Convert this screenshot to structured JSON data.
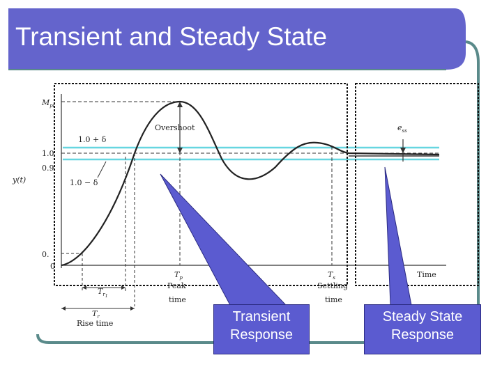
{
  "slide": {
    "title": "Transient and Steady State",
    "colors": {
      "title_bar": "#6464cc",
      "frame_line": "#5a8a8a",
      "callout": "#5b5bd0",
      "tolerance_band": "#66d6e0"
    }
  },
  "figure": {
    "y_axis_label": "y(t)",
    "y_ticks": {
      "peak": "M",
      "peak_sub": "pt",
      "upper": "1.0",
      "lower": "0.9",
      "small": "0.",
      "zero": "0"
    },
    "band_upper_label": "1.0 + δ",
    "band_lower_label": "1.0 − δ",
    "overshoot_label": "Overshoot",
    "ess_label": "e",
    "ess_sub": "ss",
    "x_axis_label": "Time",
    "peak_time_symbol": "T",
    "peak_time_sub": "p",
    "peak_time_caption": [
      "Peak",
      "time"
    ],
    "settling_time_symbol": "T",
    "settling_time_sub": "s",
    "settling_time_caption": [
      "Settling",
      "time"
    ],
    "rise_time_symbol": "T",
    "rise_time_sub": "r",
    "rise_time_sub2": "1",
    "rise_time_caption": "Rise time"
  },
  "callouts": {
    "transient": [
      "Transient",
      "Response"
    ],
    "steady": [
      "Steady State",
      "Response"
    ]
  }
}
